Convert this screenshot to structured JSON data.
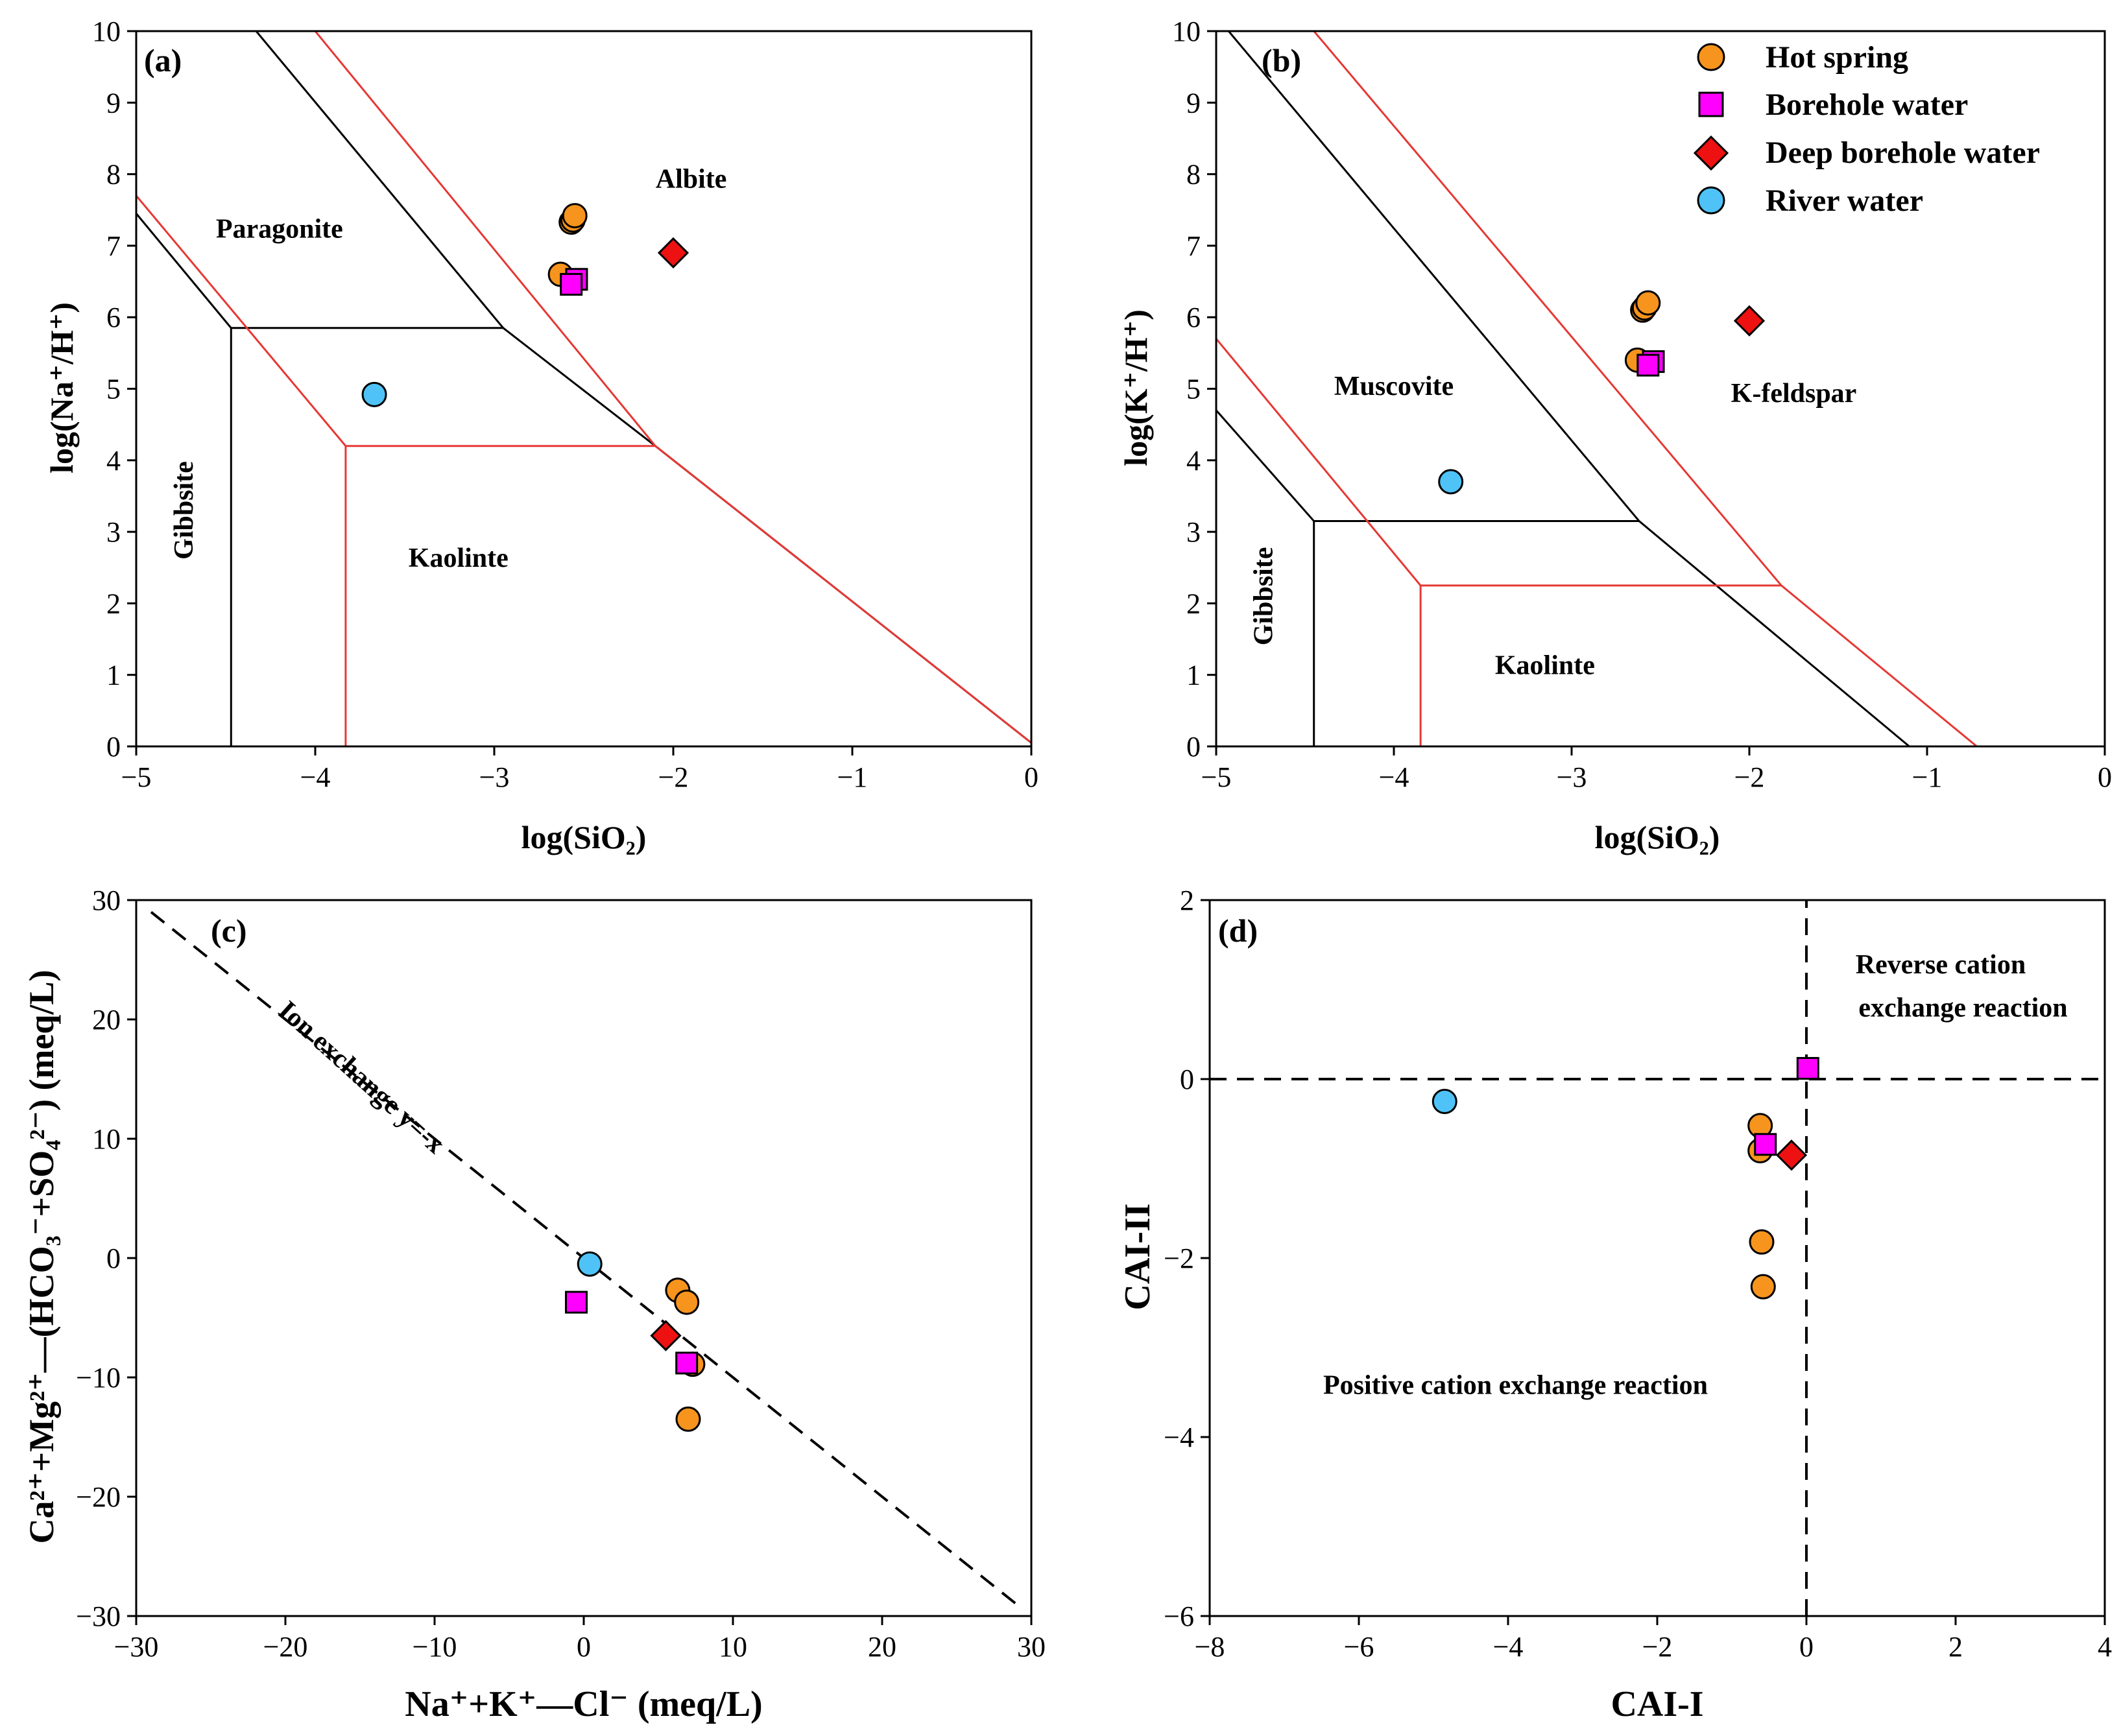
{
  "legend": {
    "items": [
      {
        "key": "hot",
        "label": "Hot spring",
        "marker": "circle",
        "color": "#F7941D"
      },
      {
        "key": "bore",
        "label": "Borehole water",
        "marker": "square",
        "color": "#FF00FF"
      },
      {
        "key": "deep",
        "label": "Deep borehole water",
        "marker": "diamond",
        "color": "#EE1111"
      },
      {
        "key": "river",
        "label": "River water",
        "marker": "circle",
        "color": "#4FC3F7"
      }
    ]
  },
  "chart_data": [
    {
      "id": "a",
      "type": "scatter",
      "tag": "(a)",
      "xlabel": "log(SiO₂)",
      "ylabel": "log(Na⁺/H⁺)",
      "xlim": [
        -5,
        0
      ],
      "ylim": [
        0,
        10
      ],
      "xticks": [
        -5,
        -4,
        -3,
        -2,
        -1,
        0
      ],
      "yticks": [
        0,
        1,
        2,
        3,
        4,
        5,
        6,
        7,
        8,
        9,
        10
      ],
      "regions": [
        {
          "name": "paragonite",
          "label": "Paragonite",
          "x": -4.2,
          "y": 7.2
        },
        {
          "name": "albite",
          "label": "Albite",
          "x": -1.9,
          "y": 7.9
        },
        {
          "name": "gibbsite",
          "label": "Gibbsite",
          "x": -4.72,
          "y": 3.3,
          "rotate": -90
        },
        {
          "name": "kaolinte",
          "label": "Kaolinte",
          "x": -3.2,
          "y": 2.6
        }
      ],
      "lines": [
        {
          "color": "#000000",
          "points": [
            [
              -5,
              7.45
            ],
            [
              -4.47,
              5.85
            ]
          ]
        },
        {
          "color": "#000000",
          "points": [
            [
              -4.47,
              0
            ],
            [
              -4.47,
              5.85
            ],
            [
              -2.95,
              5.85
            ]
          ]
        },
        {
          "color": "#000000",
          "points": [
            [
              -4.33,
              10
            ],
            [
              -2.95,
              5.85
            ],
            [
              -2.1,
              4.2
            ]
          ]
        },
        {
          "color": "#000000",
          "points": [
            [
              -2.1,
              4.2
            ],
            [
              0,
              0.05
            ]
          ]
        },
        {
          "color": "#E53935",
          "points": [
            [
              -5,
              7.7
            ],
            [
              -3.83,
              4.2
            ],
            [
              -2.1,
              4.2
            ]
          ]
        },
        {
          "color": "#E53935",
          "points": [
            [
              -3.83,
              0
            ],
            [
              -3.83,
              4.2
            ]
          ]
        },
        {
          "color": "#E53935",
          "points": [
            [
              -4.0,
              10
            ],
            [
              -2.1,
              4.2
            ],
            [
              0,
              0.05
            ]
          ]
        }
      ],
      "series": [
        {
          "name": "Hot spring",
          "key": "hot",
          "points": [
            [
              -2.57,
              7.33
            ],
            [
              -2.56,
              7.36
            ],
            [
              -2.55,
              7.42
            ],
            [
              -2.63,
              6.6
            ]
          ]
        },
        {
          "name": "Borehole water",
          "key": "bore",
          "points": [
            [
              -2.54,
              6.53
            ],
            [
              -2.57,
              6.46
            ]
          ]
        },
        {
          "name": "Deep borehole water",
          "key": "deep",
          "points": [
            [
              -2.0,
              6.9
            ]
          ]
        },
        {
          "name": "River water",
          "key": "river",
          "points": [
            [
              -3.67,
              4.92
            ]
          ]
        }
      ]
    },
    {
      "id": "b",
      "type": "scatter",
      "tag": "(b)",
      "xlabel": "log(SiO₂)",
      "ylabel": "log(K⁺/H⁺)",
      "xlim": [
        -5,
        0
      ],
      "ylim": [
        0,
        10
      ],
      "xticks": [
        -5,
        -4,
        -3,
        -2,
        -1,
        0
      ],
      "yticks": [
        0,
        1,
        2,
        3,
        4,
        5,
        6,
        7,
        8,
        9,
        10
      ],
      "regions": [
        {
          "name": "muscovite",
          "label": "Muscovite",
          "x": -4.0,
          "y": 5.0
        },
        {
          "name": "k-feldspar",
          "label": "K-feldspar",
          "x": -1.75,
          "y": 4.9
        },
        {
          "name": "gibbsite",
          "label": "Gibbsite",
          "x": -4.72,
          "y": 2.1,
          "rotate": -90
        },
        {
          "name": "kaolinte",
          "label": "Kaolinte",
          "x": -3.15,
          "y": 1.1
        }
      ],
      "lines": [
        {
          "color": "#000000",
          "points": [
            [
              -5,
              4.7
            ],
            [
              -4.45,
              3.15
            ]
          ]
        },
        {
          "color": "#000000",
          "points": [
            [
              -4.45,
              0
            ],
            [
              -4.45,
              3.15
            ],
            [
              -2.62,
              3.15
            ]
          ]
        },
        {
          "color": "#000000",
          "points": [
            [
              -4.93,
              10
            ],
            [
              -2.62,
              3.15
            ],
            [
              -1.1,
              0
            ]
          ]
        },
        {
          "color": "#E53935",
          "points": [
            [
              -5,
              5.7
            ],
            [
              -3.85,
              2.25
            ],
            [
              -1.82,
              2.25
            ]
          ]
        },
        {
          "color": "#E53935",
          "points": [
            [
              -3.85,
              0
            ],
            [
              -3.85,
              2.25
            ]
          ]
        },
        {
          "color": "#E53935",
          "points": [
            [
              -4.45,
              10
            ],
            [
              -1.82,
              2.25
            ],
            [
              -0.72,
              0
            ]
          ]
        }
      ],
      "series": [
        {
          "name": "Hot spring",
          "key": "hot",
          "points": [
            [
              -2.6,
              6.1
            ],
            [
              -2.59,
              6.13
            ],
            [
              -2.57,
              6.2
            ],
            [
              -2.63,
              5.4
            ]
          ]
        },
        {
          "name": "Borehole water",
          "key": "bore",
          "points": [
            [
              -2.54,
              5.38
            ],
            [
              -2.57,
              5.33
            ]
          ]
        },
        {
          "name": "Deep borehole water",
          "key": "deep",
          "points": [
            [
              -2.0,
              5.95
            ]
          ]
        },
        {
          "name": "River water",
          "key": "river",
          "points": [
            [
              -3.68,
              3.7
            ]
          ]
        }
      ]
    },
    {
      "id": "c",
      "type": "scatter",
      "tag": "(c)",
      "xlabel": "Na⁺+K⁺—Cl⁻ (meq/L)",
      "ylabel": "Ca²⁺+Mg²⁺—(HCO₃⁻+SO₄²⁻) (meq/L)",
      "xlim": [
        -30,
        30
      ],
      "ylim": [
        -30,
        30
      ],
      "xticks": [
        -30,
        -20,
        -10,
        0,
        10,
        20,
        30
      ],
      "yticks": [
        -30,
        -20,
        -10,
        0,
        10,
        20,
        30
      ],
      "dashed_lines": [
        {
          "points": [
            [
              -29,
              29
            ],
            [
              29,
              -29
            ]
          ]
        }
      ],
      "annotations": [
        {
          "name": "ion-exchange-line-label",
          "text": "Ion exchange y=-x",
          "x": -15,
          "y": 15,
          "rotate": 42
        }
      ],
      "series": [
        {
          "name": "Hot spring",
          "key": "hot",
          "points": [
            [
              6.3,
              -2.7
            ],
            [
              6.9,
              -3.7
            ],
            [
              7.3,
              -8.9
            ],
            [
              7.0,
              -13.5
            ]
          ]
        },
        {
          "name": "Borehole water",
          "key": "bore",
          "points": [
            [
              -0.5,
              -3.7
            ],
            [
              6.9,
              -8.8
            ]
          ]
        },
        {
          "name": "Deep borehole water",
          "key": "deep",
          "points": [
            [
              5.5,
              -6.5
            ]
          ]
        },
        {
          "name": "River water",
          "key": "river",
          "points": [
            [
              0.4,
              -0.5
            ]
          ]
        }
      ]
    },
    {
      "id": "d",
      "type": "scatter",
      "tag": "(d)",
      "xlabel": "CAI-I",
      "ylabel": "CAI-II",
      "xlim": [
        -8,
        4
      ],
      "ylim": [
        -6,
        2
      ],
      "xticks": [
        -8,
        -6,
        -4,
        -2,
        0,
        2,
        4
      ],
      "yticks": [
        -6,
        -4,
        -2,
        0,
        2
      ],
      "dashed_lines": [
        {
          "points": [
            [
              -8,
              0
            ],
            [
              4,
              0
            ]
          ]
        },
        {
          "points": [
            [
              0,
              -6
            ],
            [
              0,
              2
            ]
          ]
        }
      ],
      "annotations": [
        {
          "name": "reverse-label-line1",
          "text": "Reverse cation",
          "x": 1.8,
          "y": 1.25
        },
        {
          "name": "reverse-label-line2",
          "text": "exchange reaction",
          "x": 2.1,
          "y": 0.77
        },
        {
          "name": "positive-label",
          "text": "Positive cation exchange reaction",
          "x": -3.9,
          "y": -3.45
        }
      ],
      "series": [
        {
          "name": "Hot spring",
          "key": "hot",
          "points": [
            [
              -0.62,
              -0.52
            ],
            [
              -0.62,
              -0.8
            ],
            [
              -0.6,
              -1.82
            ],
            [
              -0.58,
              -2.32
            ]
          ]
        },
        {
          "name": "Borehole water",
          "key": "bore",
          "points": [
            [
              0.02,
              0.12
            ],
            [
              -0.55,
              -0.73
            ]
          ]
        },
        {
          "name": "Deep borehole water",
          "key": "deep",
          "points": [
            [
              -0.2,
              -0.85
            ]
          ]
        },
        {
          "name": "River water",
          "key": "river",
          "points": [
            [
              -4.85,
              -0.25
            ]
          ]
        }
      ]
    }
  ]
}
